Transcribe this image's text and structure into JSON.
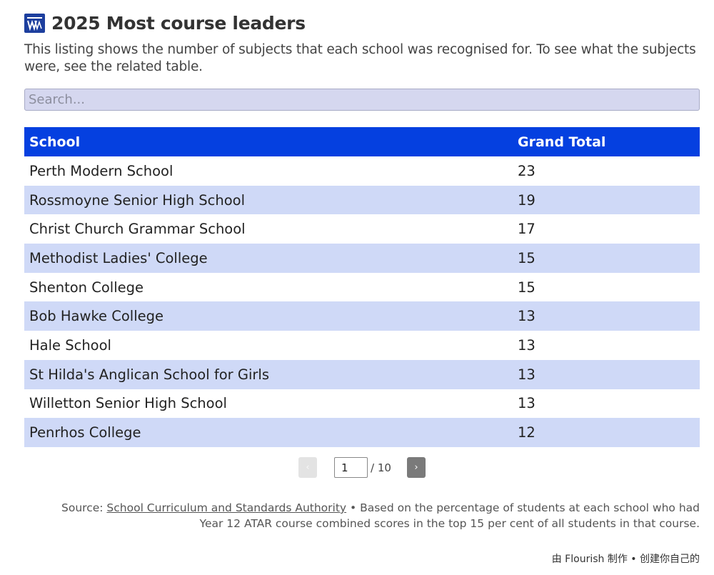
{
  "header": {
    "title": "2025 Most course leaders",
    "subtitle": "This listing shows the number of subjects that each school was recognised for. To see what the subjects were, see the related table."
  },
  "search": {
    "placeholder": "Search..."
  },
  "table": {
    "columns": [
      "School",
      "Grand Total"
    ],
    "rows": [
      {
        "school": "Perth Modern School",
        "total": "23"
      },
      {
        "school": "Rossmoyne Senior High School",
        "total": "19"
      },
      {
        "school": "Christ Church Grammar School",
        "total": "17"
      },
      {
        "school": "Methodist Ladies' College",
        "total": "15"
      },
      {
        "school": "Shenton College",
        "total": "15"
      },
      {
        "school": "Bob Hawke College",
        "total": "13"
      },
      {
        "school": "Hale School",
        "total": "13"
      },
      {
        "school": "St Hilda's Anglican School for Girls",
        "total": "13"
      },
      {
        "school": "Willetton Senior High School",
        "total": "13"
      },
      {
        "school": "Penrhos College",
        "total": "12"
      }
    ]
  },
  "pagination": {
    "prev_label": "‹",
    "next_label": "›",
    "current_page": "1",
    "total_label": "/ 10"
  },
  "footer": {
    "source_prefix": "Source: ",
    "source_link": "School Curriculum and Standards Authority",
    "note": " • Based on the percentage of students at each school who had Year 12 ATAR course combined scores in the top 15 per cent of all students in that course."
  },
  "flourish_credit": "由 Flourish 制作 • 创建你自己的",
  "colors": {
    "header_bg": "#0540e0",
    "row_alt_bg": "#cfd9f7",
    "search_bg": "#d5d7ef",
    "logo_bg": "#1d3f9e"
  },
  "icons": {
    "logo": "the-west-australian-logo-icon",
    "prev": "chevron-left-icon",
    "next": "chevron-right-icon"
  }
}
